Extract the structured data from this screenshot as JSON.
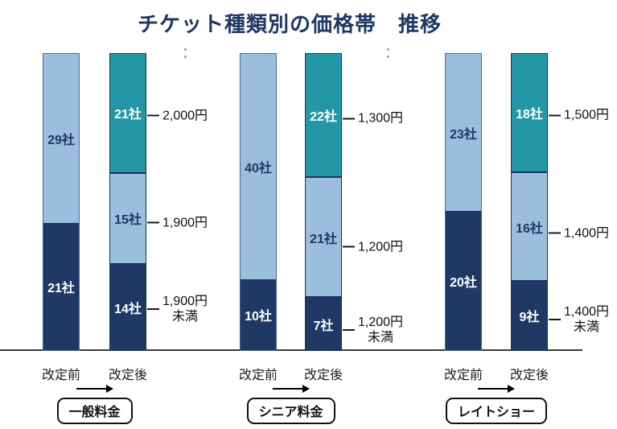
{
  "title": "チケット種類別の価格帯　推移",
  "colors": {
    "navy": "#1f3864",
    "light_blue": "#9cbede",
    "teal": "#2397a5",
    "axis_line": "#3a3a3a",
    "title_text": "#1f3864"
  },
  "chart_data": {
    "type": "bar",
    "stacked": true,
    "unit": "社",
    "title": "チケット種類別の価格帯　推移",
    "legend_position": "none",
    "grid": false,
    "groups": [
      {
        "name": "一般料金",
        "bars": [
          {
            "label": "改定前",
            "segments": [
              {
                "value": 29,
                "color_key": "light_blue",
                "text": "29社"
              },
              {
                "value": 21,
                "color_key": "navy",
                "text": "21社"
              }
            ]
          },
          {
            "label": "改定後",
            "segments": [
              {
                "value": 21,
                "color_key": "teal",
                "text": "21社",
                "price": "2,000円"
              },
              {
                "value": 15,
                "color_key": "light_blue",
                "text": "15社",
                "price": "1,900円"
              },
              {
                "value": 14,
                "color_key": "navy",
                "text": "14社",
                "price": "1,900円\n未満"
              }
            ]
          }
        ]
      },
      {
        "name": "シニア料金",
        "bars": [
          {
            "label": "改定前",
            "segments": [
              {
                "value": 40,
                "color_key": "light_blue",
                "text": "40社"
              },
              {
                "value": 10,
                "color_key": "navy",
                "text": "10社"
              }
            ]
          },
          {
            "label": "改定後",
            "segments": [
              {
                "value": 22,
                "color_key": "teal",
                "text": "22社",
                "price": "1,300円"
              },
              {
                "value": 21,
                "color_key": "light_blue",
                "text": "21社",
                "price": "1,200円"
              },
              {
                "value": 7,
                "color_key": "navy",
                "text": "7社",
                "price": "1,200円\n未満"
              }
            ]
          }
        ]
      },
      {
        "name": "レイトショー",
        "bars": [
          {
            "label": "改定前",
            "segments": [
              {
                "value": 23,
                "color_key": "light_blue",
                "text": "23社"
              },
              {
                "value": 20,
                "color_key": "navy",
                "text": "20社"
              }
            ]
          },
          {
            "label": "改定後",
            "segments": [
              {
                "value": 18,
                "color_key": "teal",
                "text": "18社",
                "price": "1,500円"
              },
              {
                "value": 16,
                "color_key": "light_blue",
                "text": "16社",
                "price": "1,400円"
              },
              {
                "value": 9,
                "color_key": "navy",
                "text": "9社",
                "price": "1,400円\n未満"
              }
            ]
          }
        ]
      }
    ]
  }
}
